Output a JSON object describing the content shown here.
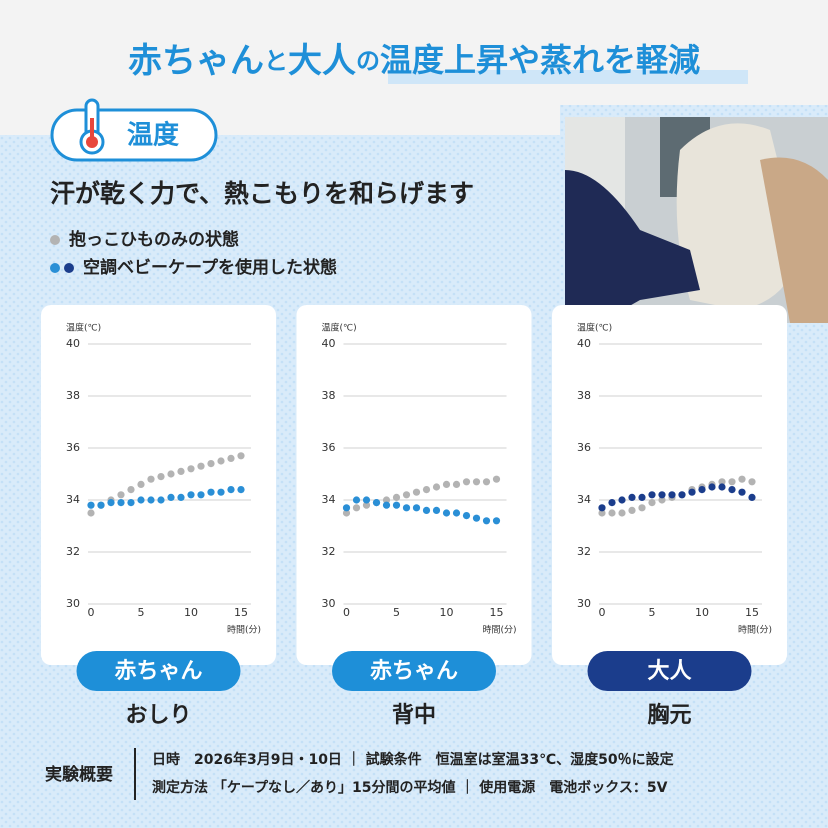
{
  "header": {
    "title_parts": [
      "赤ちゃん",
      "と",
      "大人",
      "の",
      "温度上昇や蒸れを軽減"
    ],
    "badge": "温度",
    "heading": "汗が乾く力で、熱こもりを和らげます",
    "legend": [
      {
        "label": "抱っこひものみの状態",
        "colors": [
          "#b3b3b3"
        ]
      },
      {
        "label": "空調ベビーケープを使用した状態",
        "colors": [
          "#2a8fd6",
          "#1b3d8c"
        ]
      }
    ]
  },
  "chart_data": [
    {
      "type": "scatter",
      "tag": "赤ちゃん",
      "tag_color": "#1e8fd8",
      "title": "おしり",
      "y_label": "温度(℃)",
      "x_label": "時間(分)",
      "x": [
        0,
        1,
        2,
        3,
        4,
        5,
        6,
        7,
        8,
        9,
        10,
        11,
        12,
        13,
        14,
        15
      ],
      "xlim": [
        0,
        15
      ],
      "xticks": [
        0,
        5,
        10,
        15
      ],
      "ylim": [
        30,
        40
      ],
      "yticks": [
        30,
        32,
        34,
        36,
        38,
        40
      ],
      "grid": true,
      "series": [
        {
          "color": "#b3b3b3",
          "values": [
            33.5,
            33.8,
            34.0,
            34.2,
            34.4,
            34.6,
            34.8,
            34.9,
            35.0,
            35.1,
            35.2,
            35.3,
            35.4,
            35.5,
            35.6,
            35.7
          ]
        },
        {
          "color": "#2a8fd6",
          "values": [
            33.8,
            33.8,
            33.9,
            33.9,
            33.9,
            34.0,
            34.0,
            34.0,
            34.1,
            34.1,
            34.2,
            34.2,
            34.3,
            34.3,
            34.4,
            34.4
          ]
        }
      ]
    },
    {
      "type": "scatter",
      "tag": "赤ちゃん",
      "tag_color": "#1e8fd8",
      "title": "背中",
      "y_label": "温度(℃)",
      "x_label": "時間(分)",
      "x": [
        0,
        1,
        2,
        3,
        4,
        5,
        6,
        7,
        8,
        9,
        10,
        11,
        12,
        13,
        14,
        15
      ],
      "xlim": [
        0,
        15
      ],
      "xticks": [
        0,
        5,
        10,
        15
      ],
      "ylim": [
        30,
        40
      ],
      "yticks": [
        30,
        32,
        34,
        36,
        38,
        40
      ],
      "grid": true,
      "series": [
        {
          "color": "#b3b3b3",
          "values": [
            33.5,
            33.7,
            33.8,
            33.9,
            34.0,
            34.1,
            34.2,
            34.3,
            34.4,
            34.5,
            34.6,
            34.6,
            34.7,
            34.7,
            34.7,
            34.8
          ]
        },
        {
          "color": "#2a8fd6",
          "values": [
            33.7,
            34.0,
            34.0,
            33.9,
            33.8,
            33.8,
            33.7,
            33.7,
            33.6,
            33.6,
            33.5,
            33.5,
            33.4,
            33.3,
            33.2,
            33.2
          ]
        }
      ]
    },
    {
      "type": "scatter",
      "tag": "大人",
      "tag_color": "#1b3d8c",
      "title": "胸元",
      "y_label": "温度(℃)",
      "x_label": "時間(分)",
      "x": [
        0,
        1,
        2,
        3,
        4,
        5,
        6,
        7,
        8,
        9,
        10,
        11,
        12,
        13,
        14,
        15
      ],
      "xlim": [
        0,
        15
      ],
      "xticks": [
        0,
        5,
        10,
        15
      ],
      "ylim": [
        30,
        40
      ],
      "yticks": [
        30,
        32,
        34,
        36,
        38,
        40
      ],
      "grid": true,
      "series": [
        {
          "color": "#b3b3b3",
          "values": [
            33.5,
            33.5,
            33.5,
            33.6,
            33.7,
            33.9,
            34.0,
            34.1,
            34.2,
            34.4,
            34.5,
            34.6,
            34.7,
            34.7,
            34.8,
            34.7
          ]
        },
        {
          "color": "#1b3d8c",
          "values": [
            33.7,
            33.9,
            34.0,
            34.1,
            34.1,
            34.2,
            34.2,
            34.2,
            34.2,
            34.3,
            34.4,
            34.5,
            34.5,
            34.4,
            34.3,
            34.1
          ]
        }
      ]
    }
  ],
  "footer": {
    "label": "実験概要",
    "lines": [
      "日時　2026年3月9日・10日 ｜ 試験条件　恒温室は室温33℃、湿度50％に設定",
      "測定方法 「ケープなし／あり」15分間の平均値 ｜ 使用電源　電池ボックス：5V"
    ]
  }
}
